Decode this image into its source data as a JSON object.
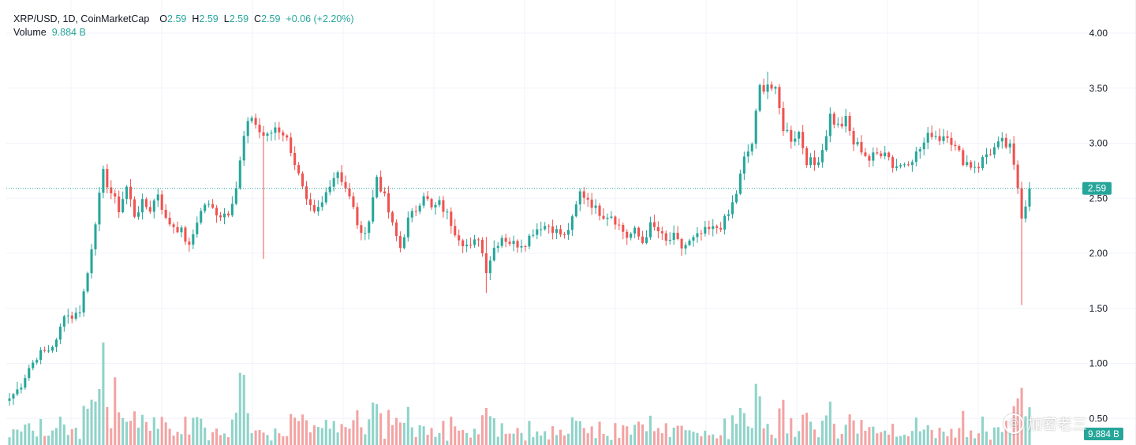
{
  "legend": {
    "symbol": "XRP/USD, 1D, CoinMarketCap",
    "open_label": "O",
    "open": "2.59",
    "high_label": "H",
    "high": "2.59",
    "low_label": "L",
    "low": "2.59",
    "close_label": "C",
    "close": "2.59",
    "change": "+0.06 (+2.20%)",
    "volume_label": "Volume",
    "volume_value": "9.884 B"
  },
  "price_badge": "2.59",
  "volume_badge": "9.884 B",
  "watermark_text": "加密老三",
  "colors": {
    "up": "#26a69a",
    "down": "#ef5350",
    "up_volume": "#8fd3c9",
    "down_volume": "#f4a3a3",
    "grid": "#f0f3fa",
    "price_line": "#26a69a",
    "axis_text": "#131722"
  },
  "chart_data": {
    "type": "candlestick",
    "title": "XRP/USD, 1D, CoinMarketCap",
    "ylim": [
      0.25,
      4.22
    ],
    "y_ticks": [
      "4.00",
      "3.50",
      "3.00",
      "2.50",
      "2.00",
      "1.50",
      "1.00",
      "0.50"
    ],
    "grid": true,
    "last_price": 2.59,
    "anchors": [
      [
        0,
        0.68
      ],
      [
        3,
        0.8
      ],
      [
        5,
        0.96
      ],
      [
        8,
        1.1
      ],
      [
        10,
        1.12
      ],
      [
        12,
        1.2
      ],
      [
        14,
        1.45
      ],
      [
        16,
        1.42
      ],
      [
        18,
        1.48
      ],
      [
        20,
        1.82
      ],
      [
        22,
        2.3
      ],
      [
        24,
        2.72
      ],
      [
        26,
        2.55
      ],
      [
        28,
        2.4
      ],
      [
        30,
        2.6
      ],
      [
        32,
        2.35
      ],
      [
        34,
        2.45
      ],
      [
        36,
        2.4
      ],
      [
        38,
        2.55
      ],
      [
        40,
        2.3
      ],
      [
        42,
        2.25
      ],
      [
        44,
        2.2
      ],
      [
        46,
        2.05
      ],
      [
        48,
        2.3
      ],
      [
        50,
        2.45
      ],
      [
        52,
        2.4
      ],
      [
        54,
        2.35
      ],
      [
        56,
        2.38
      ],
      [
        58,
        2.6
      ],
      [
        60,
        3.05
      ],
      [
        62,
        3.25
      ],
      [
        64,
        3.1
      ],
      [
        66,
        3.05
      ],
      [
        68,
        3.15
      ],
      [
        70,
        3.1
      ],
      [
        72,
        2.95
      ],
      [
        74,
        2.7
      ],
      [
        76,
        2.45
      ],
      [
        78,
        2.35
      ],
      [
        80,
        2.45
      ],
      [
        82,
        2.65
      ],
      [
        84,
        2.75
      ],
      [
        86,
        2.6
      ],
      [
        88,
        2.4
      ],
      [
        90,
        2.15
      ],
      [
        92,
        2.3
      ],
      [
        94,
        2.7
      ],
      [
        96,
        2.5
      ],
      [
        98,
        2.25
      ],
      [
        100,
        2.05
      ],
      [
        102,
        2.3
      ],
      [
        104,
        2.4
      ],
      [
        106,
        2.55
      ],
      [
        108,
        2.4
      ],
      [
        110,
        2.45
      ],
      [
        112,
        2.35
      ],
      [
        114,
        2.2
      ],
      [
        116,
        2.1
      ],
      [
        118,
        2.05
      ],
      [
        120,
        2.15
      ],
      [
        122,
        1.85
      ],
      [
        124,
        2.05
      ],
      [
        126,
        2.15
      ],
      [
        128,
        2.1
      ],
      [
        130,
        2.08
      ],
      [
        132,
        2.1
      ],
      [
        134,
        2.2
      ],
      [
        136,
        2.25
      ],
      [
        138,
        2.25
      ],
      [
        140,
        2.2
      ],
      [
        142,
        2.15
      ],
      [
        144,
        2.3
      ],
      [
        146,
        2.55
      ],
      [
        148,
        2.5
      ],
      [
        150,
        2.4
      ],
      [
        152,
        2.35
      ],
      [
        154,
        2.35
      ],
      [
        156,
        2.25
      ],
      [
        158,
        2.15
      ],
      [
        160,
        2.2
      ],
      [
        162,
        2.1
      ],
      [
        164,
        2.25
      ],
      [
        166,
        2.2
      ],
      [
        168,
        2.1
      ],
      [
        170,
        2.15
      ],
      [
        172,
        2.05
      ],
      [
        174,
        2.1
      ],
      [
        176,
        2.15
      ],
      [
        178,
        2.2
      ],
      [
        180,
        2.22
      ],
      [
        182,
        2.25
      ],
      [
        184,
        2.35
      ],
      [
        186,
        2.55
      ],
      [
        188,
        2.85
      ],
      [
        190,
        3.0
      ],
      [
        192,
        3.5
      ],
      [
        194,
        3.55
      ],
      [
        196,
        3.45
      ],
      [
        198,
        3.15
      ],
      [
        200,
        3.05
      ],
      [
        202,
        3.1
      ],
      [
        204,
        2.85
      ],
      [
        206,
        2.8
      ],
      [
        208,
        2.95
      ],
      [
        210,
        3.25
      ],
      [
        212,
        3.15
      ],
      [
        214,
        3.2
      ],
      [
        216,
        3.0
      ],
      [
        218,
        2.95
      ],
      [
        220,
        2.85
      ],
      [
        222,
        2.9
      ],
      [
        224,
        2.95
      ],
      [
        226,
        2.8
      ],
      [
        228,
        2.8
      ],
      [
        230,
        2.85
      ],
      [
        232,
        2.9
      ],
      [
        234,
        3.0
      ],
      [
        236,
        3.1
      ],
      [
        238,
        3.05
      ],
      [
        240,
        3.1
      ],
      [
        242,
        2.95
      ],
      [
        244,
        2.85
      ],
      [
        246,
        2.8
      ],
      [
        248,
        2.8
      ],
      [
        250,
        2.9
      ],
      [
        252,
        2.95
      ],
      [
        254,
        3.0
      ],
      [
        256,
        2.95
      ],
      [
        258,
        2.6
      ],
      [
        259,
        2.35
      ],
      [
        260,
        2.45
      ],
      [
        261,
        2.59
      ]
    ],
    "wicks": [
      {
        "index": 259,
        "low": 1.53,
        "high": 2.6
      },
      {
        "index": 65,
        "low": 1.95,
        "high": 3.1
      },
      {
        "index": 194,
        "low": 3.4,
        "high": 3.65
      },
      {
        "index": 122,
        "low": 1.64,
        "high": 2.15
      }
    ],
    "volume_note": "Volume histogram at bottom; latest volume 9.884 B"
  }
}
